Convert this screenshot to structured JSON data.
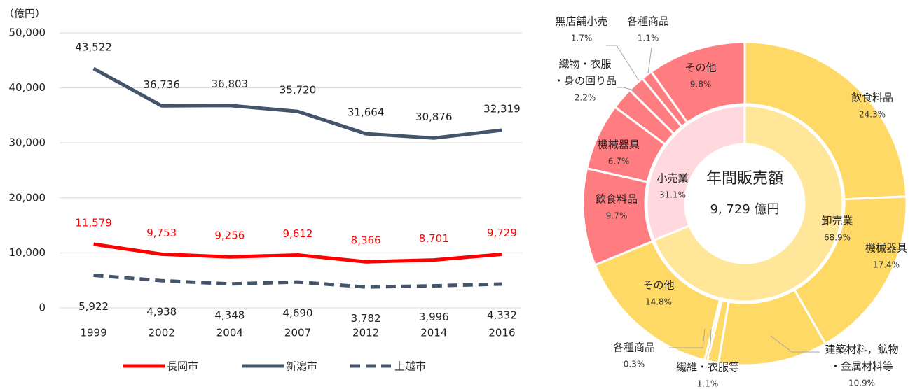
{
  "chart_data": [
    {
      "type": "line",
      "y_unit_label": "（億円）",
      "categories": [
        "1999",
        "2002",
        "2004",
        "2007",
        "2012",
        "2014",
        "2016"
      ],
      "series": [
        {
          "name": "長岡市",
          "color": "#ff0000",
          "dash": false,
          "label_color": "#ff0000",
          "label_side": "above",
          "values": [
            11579,
            9753,
            9256,
            9612,
            8366,
            8701,
            9729
          ],
          "value_labels": [
            "11,579",
            "9,753",
            "9,256",
            "9,612",
            "8,366",
            "8,701",
            "9,729"
          ]
        },
        {
          "name": "新潟市",
          "color": "#44546a",
          "dash": false,
          "label_color": "#222222",
          "label_side": "above",
          "values": [
            43522,
            36736,
            36803,
            35720,
            31664,
            30876,
            32319
          ],
          "value_labels": [
            "43,522",
            "36,736",
            "36,803",
            "35,720",
            "31,664",
            "30,876",
            "32,319"
          ]
        },
        {
          "name": "上越市",
          "color": "#44546a",
          "dash": true,
          "label_color": "#222222",
          "label_side": "below",
          "values": [
            5922,
            4938,
            4348,
            4690,
            3782,
            3996,
            4332
          ],
          "value_labels": [
            "5,922",
            "4,938",
            "4,348",
            "4,690",
            "3,782",
            "3,996",
            "4,332"
          ]
        }
      ],
      "ylim": [
        0,
        50000
      ],
      "yticks": [
        0,
        {
          "value": 10000,
          "label": "10,000"
        },
        {
          "value": 20000,
          "label": "20,000"
        },
        {
          "value": 30000,
          "label": "30,000"
        },
        {
          "value": 40000,
          "label": "40,000"
        },
        {
          "value": 50000,
          "label": "50,000"
        }
      ],
      "grid": true,
      "legend": "bottom"
    },
    {
      "type": "donut",
      "center_title": "年間販売額",
      "center_value": "9, 729 億円",
      "rings": [
        {
          "categories": [
            "卸売業",
            "小売業"
          ],
          "values": [
            68.9,
            31.1
          ],
          "value_labels": [
            "68.9%",
            "31.1%"
          ],
          "colors": [
            "#ffe699",
            "#ffd9de"
          ]
        },
        {
          "categories": [
            "飲食料品",
            "機械器具",
            [
              "建築材料，鉱物",
              "・金属材料等"
            ],
            "繊維・衣服等",
            "各種商品",
            "その他",
            "飲食料品",
            "機械器具",
            [
              "織物・衣服",
              "・身の回り品"
            ],
            "無店舗小売",
            "各種商品",
            "その他"
          ],
          "values": [
            24.3,
            17.4,
            10.9,
            1.1,
            0.3,
            14.8,
            9.7,
            6.7,
            2.2,
            1.7,
            1.1,
            9.8
          ],
          "value_labels": [
            "24.3%",
            "17.4%",
            "10.9%",
            "1.1%",
            "0.3%",
            "14.8%",
            "9.7%",
            "6.7%",
            "2.2%",
            "1.7%",
            "1.1%",
            "9.8%"
          ],
          "colors": [
            "#ffd966",
            "#ffd966",
            "#ffd966",
            "#ffd966",
            "#ffd966",
            "#ffd966",
            "#ff7c80",
            "#ff7c80",
            "#ff7c80",
            "#ff7c80",
            "#ff7c80",
            "#ff7c80"
          ]
        }
      ]
    }
  ]
}
